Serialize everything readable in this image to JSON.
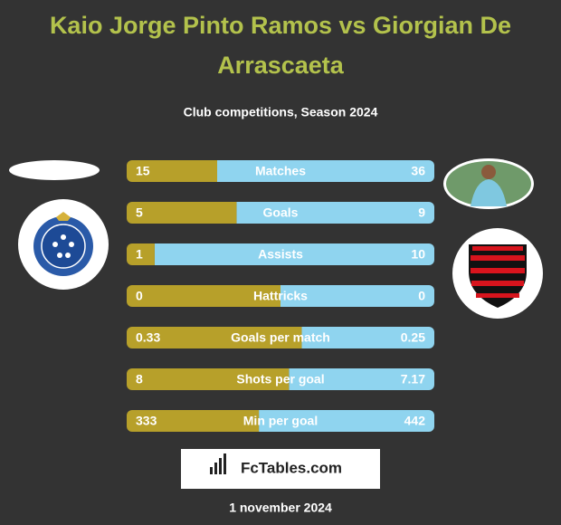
{
  "header": {
    "title": "Kaio Jorge Pinto Ramos vs Giorgian De Arrascaeta",
    "subtitle": "Club competitions, Season 2024"
  },
  "stats": [
    {
      "label": "Matches",
      "left": 15,
      "right": 36
    },
    {
      "label": "Goals",
      "left": 5,
      "right": 9
    },
    {
      "label": "Assists",
      "left": 1,
      "right": 10
    },
    {
      "label": "Hattricks",
      "left": 0,
      "right": 0
    },
    {
      "label": "Goals per match",
      "left": 0.33,
      "right": 0.25
    },
    {
      "label": "Shots per goal",
      "left": 8,
      "right": 7.17
    },
    {
      "label": "Min per goal",
      "left": 333,
      "right": 442
    }
  ],
  "brand": "FcTables.com",
  "date": "1 november 2024"
}
